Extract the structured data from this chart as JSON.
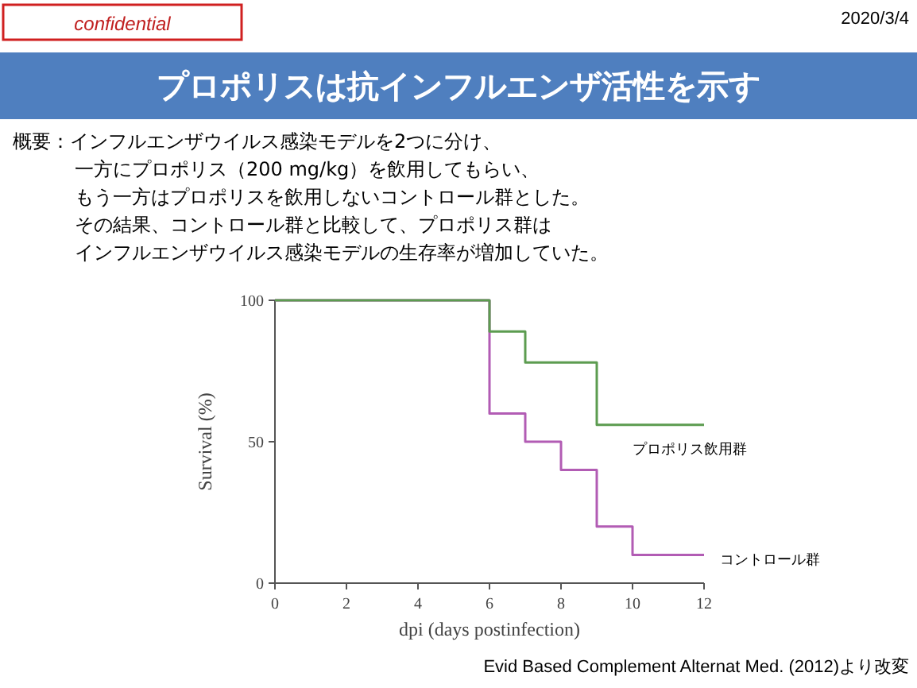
{
  "chart_data": {
    "type": "step",
    "title": "プロポリスは抗インフルエンザ活性を示す",
    "annotations": [
      "confidential",
      "2020/3/4",
      "概要：インフルエンザウイルス感染モデルを2つに分け、",
      "一方にプロポリス（200 mg/kg）を飲用してもらい、",
      "もう一方はプロポリスを飲用しないコントロール群とした。",
      "その結果、コントロール群と比較して、プロポリス群は",
      "インフルエンザウイルス感染モデルの生存率が増加していた。",
      "Evid Based Complement Alternat Med. (2012)より改変"
    ],
    "xlabel": "dpi (days postinfection)",
    "ylabel": "Survival (%)",
    "xlim": [
      0,
      12
    ],
    "xticks": [
      0,
      2,
      4,
      6,
      8,
      10,
      12
    ],
    "ylim": [
      0,
      100
    ],
    "yticks": [
      0,
      50,
      100
    ],
    "grid": false,
    "series": [
      {
        "name": "プロポリス飲用群",
        "color": "#5c9c50",
        "x": [
          0,
          6,
          7,
          9,
          12
        ],
        "values": [
          100,
          89,
          78,
          56,
          56
        ]
      },
      {
        "name": "コントロール群",
        "color": "#b25cb4",
        "x": [
          0,
          6,
          7,
          8,
          9,
          10,
          12
        ],
        "values": [
          100,
          60,
          50,
          40,
          20,
          10,
          10
        ]
      }
    ]
  }
}
